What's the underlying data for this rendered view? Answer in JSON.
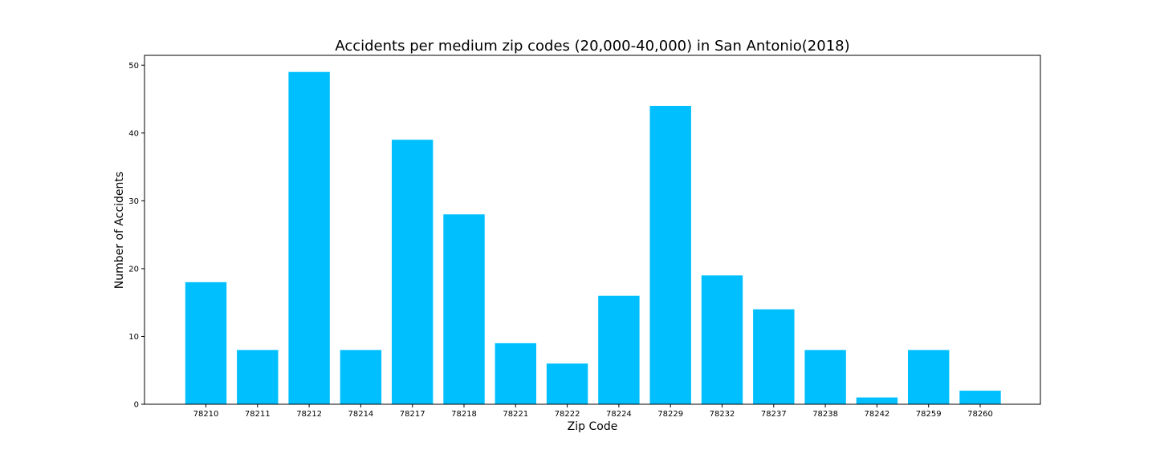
{
  "chart_data": {
    "type": "bar",
    "title": "Accidents per medium zip codes (20,000-40,000) in San Antonio(2018)",
    "xlabel": "Zip Code",
    "ylabel": "Number of Accidents",
    "categories": [
      "78210",
      "78211",
      "78212",
      "78214",
      "78217",
      "78218",
      "78221",
      "78222",
      "78224",
      "78229",
      "78232",
      "78237",
      "78238",
      "78242",
      "78259",
      "78260"
    ],
    "values": [
      18,
      8,
      49,
      8,
      39,
      28,
      9,
      6,
      16,
      44,
      19,
      14,
      8,
      1,
      8,
      2
    ],
    "ylim": [
      0,
      51.45
    ],
    "yticks": [
      0,
      10,
      20,
      30,
      40,
      50
    ],
    "bar_color": "#00bfff",
    "grid": false,
    "legend": "none"
  }
}
